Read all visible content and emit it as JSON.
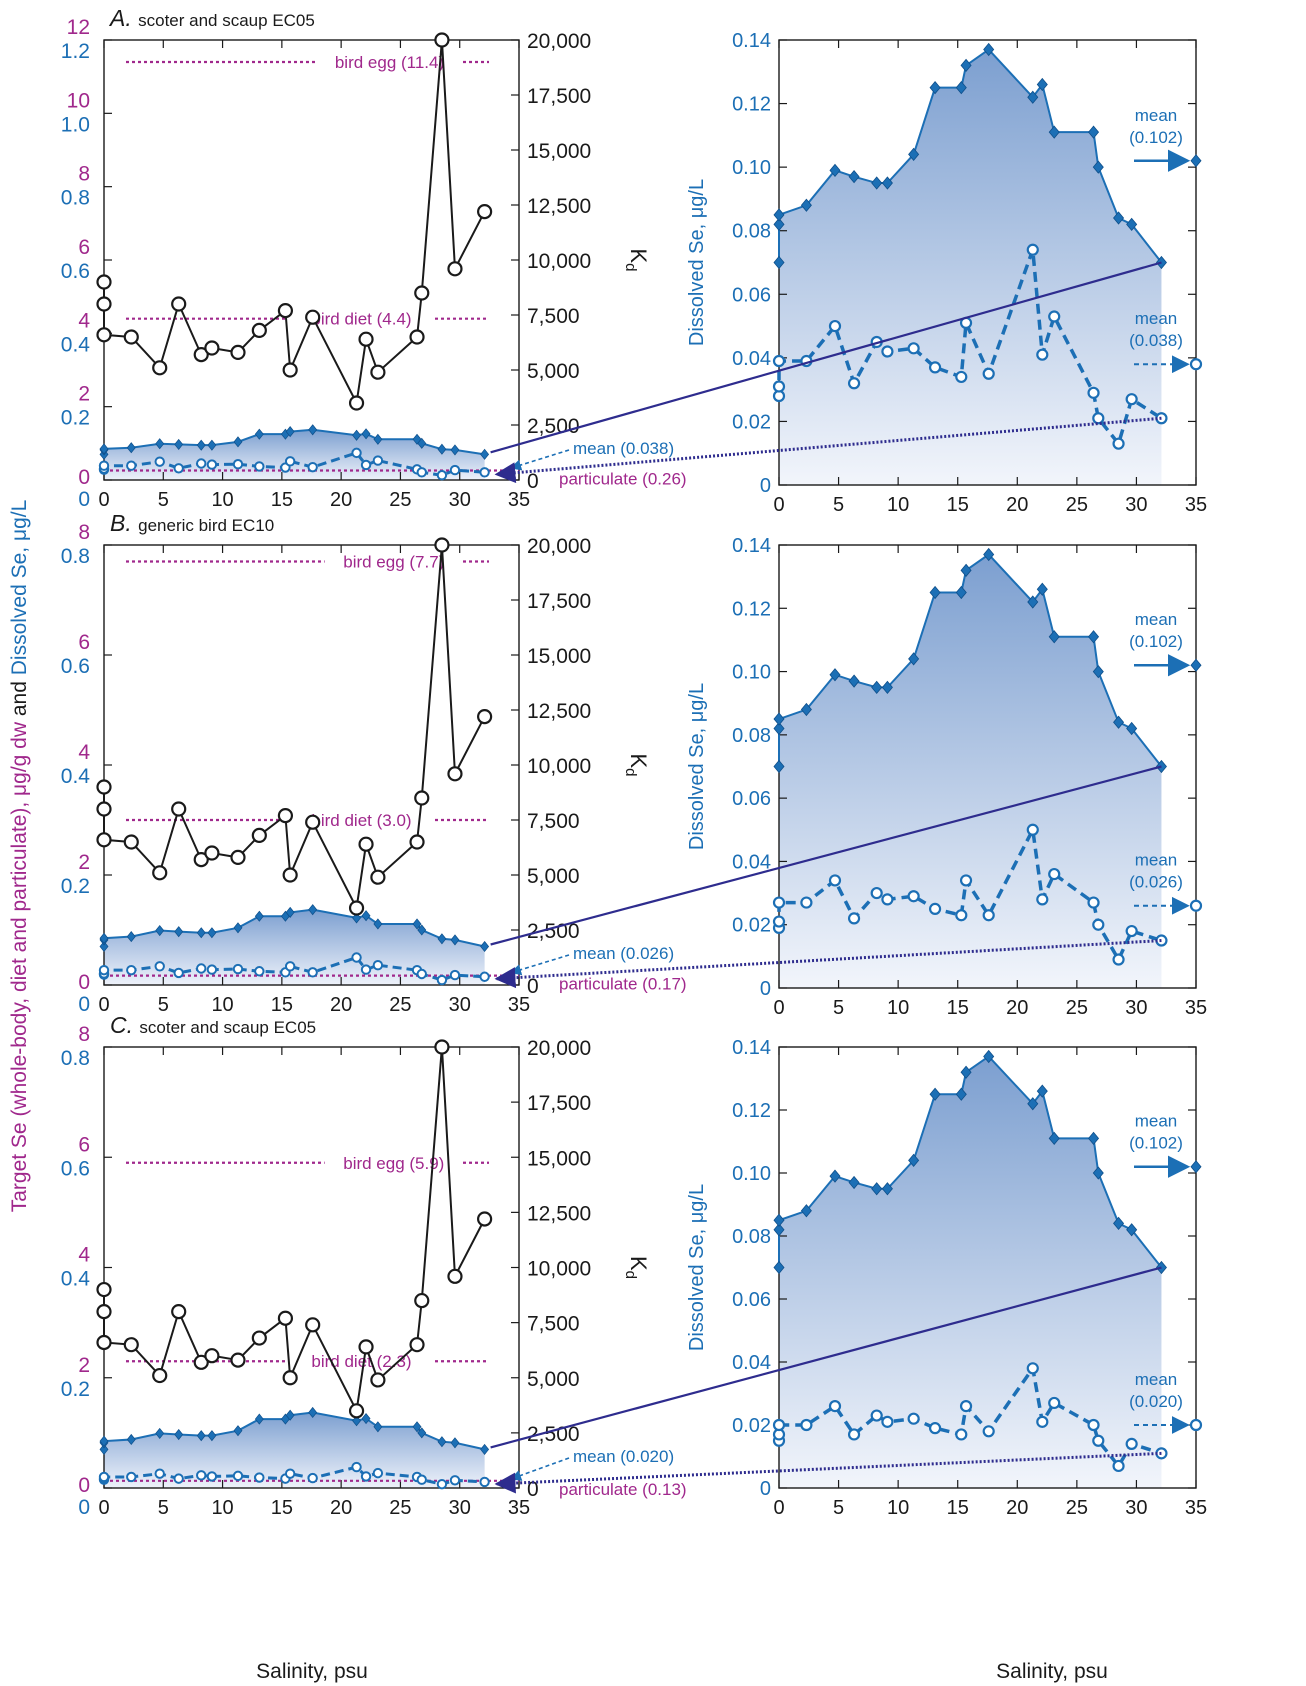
{
  "colors": {
    "magenta": "#A0288C",
    "blue": "#1C6FB5",
    "navy": "#2E2C8E",
    "fill_top": "#7C9FD0",
    "fill_bottom": "#F2F5FB",
    "black": "#1A1A1A"
  },
  "figure": {
    "left_axis_title_part1": "Target Se (whole-body, diet and particulate), μg/g dw",
    "left_axis_title_and": " and ",
    "left_axis_title_part2": "Dissolved Se, μg/L",
    "right_axis_title": "Dissolved Se, μg/L",
    "kd_label": "K",
    "kd_subscript": "d",
    "xlabel": "Salinity, psu"
  },
  "chart_data": [
    {
      "type": "line",
      "panel_letter": "A.",
      "panel_title": "scoter and scaup EC05",
      "xlabel": "Salinity, psu",
      "xlim": [
        0,
        35
      ],
      "x_ticks": [
        0,
        5,
        10,
        15,
        20,
        25,
        30,
        35
      ],
      "x_tick_labels": [
        "0",
        "5",
        "10",
        "15",
        "20",
        "25",
        "30",
        "35"
      ],
      "target_axis": {
        "color": "magenta",
        "ylim": [
          0,
          12
        ],
        "ticks": [
          0,
          2,
          4,
          6,
          8,
          10,
          12
        ],
        "tick_labels": [
          "0",
          "2",
          "4",
          "6",
          "8",
          "10",
          "12"
        ]
      },
      "dissolved_axis": {
        "color": "blue",
        "ylim": [
          0,
          1.2
        ],
        "ticks": [
          0,
          0.2,
          0.4,
          0.6,
          0.8,
          1.0,
          1.2
        ],
        "tick_labels": [
          "0",
          "0.2",
          "0.4",
          "0.6",
          "0.8",
          "1.0",
          "1.2"
        ]
      },
      "kd_axis": {
        "ylim": [
          0,
          20000
        ],
        "ticks": [
          0,
          2500,
          5000,
          7500,
          10000,
          12500,
          15000,
          17500,
          20000
        ],
        "tick_labels": [
          "0",
          "2,500",
          "5,000",
          "7,500",
          "10,000",
          "12,500",
          "15,000",
          "17,500",
          "20,000"
        ]
      },
      "thresholds": [
        {
          "label": "bird egg (11.4)",
          "value": 11.4,
          "units": "target"
        },
        {
          "label": "bird diet (4.4)",
          "value": 4.4,
          "units": "target"
        },
        {
          "label": "particulate (0.26)",
          "value": 0.26,
          "units": "target"
        }
      ],
      "mean_labels": {
        "left_mean": "mean (0.038)"
      },
      "kd_series": {
        "name": "Kd",
        "x": [
          0,
          0,
          0,
          2.3,
          4.7,
          6.3,
          8.2,
          9.1,
          11.3,
          13.1,
          15.3,
          15.7,
          17.6,
          21.3,
          22.1,
          23.1,
          26.4,
          26.8,
          28.5,
          29.6,
          32.1
        ],
        "y": [
          9000,
          8000,
          6600,
          6500,
          5100,
          8000,
          5700,
          6000,
          5800,
          6800,
          7700,
          5000,
          7400,
          3500,
          6400,
          4900,
          6500,
          8500,
          20000,
          9600,
          12200
        ]
      }
    },
    {
      "type": "line",
      "panel_letter": "B.",
      "panel_title": "generic bird EC10",
      "xlabel": "Salinity, psu",
      "xlim": [
        0,
        35
      ],
      "x_ticks": [
        0,
        5,
        10,
        15,
        20,
        25,
        30,
        35
      ],
      "x_tick_labels": [
        "0",
        "5",
        "10",
        "15",
        "20",
        "25",
        "30",
        "35"
      ],
      "target_axis": {
        "color": "magenta",
        "ylim": [
          0,
          8
        ],
        "ticks": [
          0,
          2,
          4,
          6,
          8
        ],
        "tick_labels": [
          "0",
          "2",
          "4",
          "6",
          "8"
        ]
      },
      "dissolved_axis": {
        "color": "blue",
        "ylim": [
          0,
          0.8
        ],
        "ticks": [
          0,
          0.2,
          0.4,
          0.6,
          0.8
        ],
        "tick_labels": [
          "0",
          "0.2",
          "0.4",
          "0.6",
          "0.8"
        ]
      },
      "kd_axis": {
        "ylim": [
          0,
          20000
        ],
        "ticks": [
          0,
          2500,
          5000,
          7500,
          10000,
          12500,
          15000,
          17500,
          20000
        ],
        "tick_labels": [
          "0",
          "2,500",
          "5,000",
          "7,500",
          "10,000",
          "12,500",
          "15,000",
          "17,500",
          "20,000"
        ]
      },
      "thresholds": [
        {
          "label": "bird egg (7.7)",
          "value": 7.7,
          "units": "target"
        },
        {
          "label": "bird diet (3.0)",
          "value": 3.0,
          "units": "target"
        },
        {
          "label": "particulate (0.17)",
          "value": 0.17,
          "units": "target"
        }
      ],
      "mean_labels": {
        "left_mean": "mean (0.026)"
      },
      "kd_series": {
        "name": "Kd",
        "x": [
          0,
          0,
          0,
          2.3,
          4.7,
          6.3,
          8.2,
          9.1,
          11.3,
          13.1,
          15.3,
          15.7,
          17.6,
          21.3,
          22.1,
          23.1,
          26.4,
          26.8,
          28.5,
          29.6,
          32.1
        ],
        "y": [
          9000,
          8000,
          6600,
          6500,
          5100,
          8000,
          5700,
          6000,
          5800,
          6800,
          7700,
          5000,
          7400,
          3500,
          6400,
          4900,
          6500,
          8500,
          20000,
          9600,
          12200
        ]
      }
    },
    {
      "type": "line",
      "panel_letter": "C.",
      "panel_title": "scoter and scaup EC05",
      "xlabel": "Salinity, psu",
      "xlim": [
        0,
        35
      ],
      "x_ticks": [
        0,
        5,
        10,
        15,
        20,
        25,
        30,
        35
      ],
      "x_tick_labels": [
        "0",
        "5",
        "10",
        "15",
        "20",
        "25",
        "30",
        "35"
      ],
      "target_axis": {
        "color": "magenta",
        "ylim": [
          0,
          8
        ],
        "ticks": [
          0,
          2,
          4,
          6,
          8
        ],
        "tick_labels": [
          "0",
          "2",
          "4",
          "6",
          "8"
        ]
      },
      "dissolved_axis": {
        "color": "blue",
        "ylim": [
          0,
          0.8
        ],
        "ticks": [
          0,
          0.2,
          0.4,
          0.6,
          0.8
        ],
        "tick_labels": [
          "0",
          "0.2",
          "0.4",
          "0.6",
          "0.8"
        ]
      },
      "kd_axis": {
        "ylim": [
          0,
          20000
        ],
        "ticks": [
          0,
          2500,
          5000,
          7500,
          10000,
          12500,
          15000,
          17500,
          20000
        ],
        "tick_labels": [
          "0",
          "2,500",
          "5,000",
          "7,500",
          "10,000",
          "12,500",
          "15,000",
          "17,500",
          "20,000"
        ]
      },
      "thresholds": [
        {
          "label": "bird egg (5.9)",
          "value": 5.9,
          "units": "target"
        },
        {
          "label": "bird diet (2.3)",
          "value": 2.3,
          "units": "target"
        },
        {
          "label": "particulate (0.13)",
          "value": 0.13,
          "units": "target"
        }
      ],
      "mean_labels": {
        "left_mean": "mean (0.020)"
      },
      "kd_series": {
        "name": "Kd",
        "x": [
          0,
          0,
          0,
          2.3,
          4.7,
          6.3,
          8.2,
          9.1,
          11.3,
          13.1,
          15.3,
          15.7,
          17.6,
          21.3,
          22.1,
          23.1,
          26.4,
          26.8,
          28.5,
          29.6,
          32.1
        ],
        "y": [
          9000,
          8000,
          6600,
          6500,
          5100,
          8000,
          5700,
          6000,
          5800,
          6800,
          7700,
          5000,
          7400,
          3500,
          6400,
          4900,
          6500,
          8500,
          20000,
          9600,
          12200
        ]
      }
    },
    {
      "type": "area",
      "panel": "A-right",
      "ylabel": "Dissolved Se, μg/L",
      "xlabel": "Salinity, psu",
      "xlim": [
        0,
        35
      ],
      "ylim": [
        0,
        0.14
      ],
      "x_ticks": [
        0,
        5,
        10,
        15,
        20,
        25,
        30,
        35
      ],
      "x_tick_labels": [
        "0",
        "5",
        "10",
        "15",
        "20",
        "25",
        "30",
        "35"
      ],
      "y_ticks": [
        0,
        0.02,
        0.04,
        0.06,
        0.08,
        0.1,
        0.12,
        0.14
      ],
      "y_tick_labels": [
        "0",
        "0.02",
        "0.04",
        "0.06",
        "0.08",
        "0.10",
        "0.12",
        "0.14"
      ],
      "total_series": {
        "x": [
          0,
          0,
          0,
          2.3,
          4.7,
          6.3,
          8.2,
          9.1,
          11.3,
          13.1,
          15.3,
          15.7,
          17.6,
          21.3,
          22.1,
          23.1,
          26.4,
          26.8,
          28.5,
          29.6,
          32.1
        ],
        "y": [
          0.07,
          0.082,
          0.085,
          0.088,
          0.099,
          0.097,
          0.095,
          0.095,
          0.104,
          0.125,
          0.125,
          0.132,
          0.137,
          0.122,
          0.126,
          0.111,
          0.111,
          0.1,
          0.084,
          0.082,
          0.07
        ]
      },
      "scaled_series": {
        "x": [
          0,
          0,
          0,
          2.3,
          4.7,
          6.3,
          8.2,
          9.1,
          11.3,
          13.1,
          15.3,
          15.7,
          17.6,
          21.3,
          22.1,
          23.1,
          26.4,
          26.8,
          28.5,
          29.6,
          32.1
        ],
        "y": [
          0.028,
          0.031,
          0.039,
          0.039,
          0.05,
          0.032,
          0.045,
          0.042,
          0.043,
          0.037,
          0.034,
          0.051,
          0.035,
          0.074,
          0.041,
          0.053,
          0.029,
          0.021,
          0.013,
          0.027,
          0.021
        ]
      },
      "means": [
        {
          "label_line1": "mean",
          "label_line2": "(0.102)",
          "value": 0.102,
          "style": "solid"
        },
        {
          "label_line1": "mean",
          "label_line2": "(0.038)",
          "value": 0.038,
          "style": "dashed"
        }
      ]
    },
    {
      "type": "area",
      "panel": "B-right",
      "ylabel": "Dissolved Se, μg/L",
      "xlabel": "Salinity, psu",
      "xlim": [
        0,
        35
      ],
      "ylim": [
        0,
        0.14
      ],
      "x_ticks": [
        0,
        5,
        10,
        15,
        20,
        25,
        30,
        35
      ],
      "x_tick_labels": [
        "0",
        "5",
        "10",
        "15",
        "20",
        "25",
        "30",
        "35"
      ],
      "y_ticks": [
        0,
        0.02,
        0.04,
        0.06,
        0.08,
        0.1,
        0.12,
        0.14
      ],
      "y_tick_labels": [
        "0",
        "0.02",
        "0.04",
        "0.06",
        "0.08",
        "0.10",
        "0.12",
        "0.14"
      ],
      "total_series": {
        "x": [
          0,
          0,
          0,
          2.3,
          4.7,
          6.3,
          8.2,
          9.1,
          11.3,
          13.1,
          15.3,
          15.7,
          17.6,
          21.3,
          22.1,
          23.1,
          26.4,
          26.8,
          28.5,
          29.6,
          32.1
        ],
        "y": [
          0.07,
          0.082,
          0.085,
          0.088,
          0.099,
          0.097,
          0.095,
          0.095,
          0.104,
          0.125,
          0.125,
          0.132,
          0.137,
          0.122,
          0.126,
          0.111,
          0.111,
          0.1,
          0.084,
          0.082,
          0.07
        ]
      },
      "scaled_series": {
        "x": [
          0,
          0,
          0,
          2.3,
          4.7,
          6.3,
          8.2,
          9.1,
          11.3,
          13.1,
          15.3,
          15.7,
          17.6,
          21.3,
          22.1,
          23.1,
          26.4,
          26.8,
          28.5,
          29.6,
          32.1
        ],
        "y": [
          0.019,
          0.021,
          0.027,
          0.027,
          0.034,
          0.022,
          0.03,
          0.028,
          0.029,
          0.025,
          0.023,
          0.034,
          0.023,
          0.05,
          0.028,
          0.036,
          0.027,
          0.02,
          0.009,
          0.018,
          0.015
        ]
      },
      "means": [
        {
          "label_line1": "mean",
          "label_line2": "(0.102)",
          "value": 0.102,
          "style": "solid"
        },
        {
          "label_line1": "mean",
          "label_line2": "(0.026)",
          "value": 0.026,
          "style": "dashed"
        }
      ]
    },
    {
      "type": "area",
      "panel": "C-right",
      "ylabel": "Dissolved Se, μg/L",
      "xlabel": "Salinity, psu",
      "xlim": [
        0,
        35
      ],
      "ylim": [
        0,
        0.14
      ],
      "x_ticks": [
        0,
        5,
        10,
        15,
        20,
        25,
        30,
        35
      ],
      "x_tick_labels": [
        "0",
        "5",
        "10",
        "15",
        "20",
        "25",
        "30",
        "35"
      ],
      "y_ticks": [
        0,
        0.02,
        0.04,
        0.06,
        0.08,
        0.1,
        0.12,
        0.14
      ],
      "y_tick_labels": [
        "0",
        "0.02",
        "0.04",
        "0.06",
        "0.08",
        "0.10",
        "0.12",
        "0.14"
      ],
      "total_series": {
        "x": [
          0,
          0,
          0,
          2.3,
          4.7,
          6.3,
          8.2,
          9.1,
          11.3,
          13.1,
          15.3,
          15.7,
          17.6,
          21.3,
          22.1,
          23.1,
          26.4,
          26.8,
          28.5,
          29.6,
          32.1
        ],
        "y": [
          0.07,
          0.082,
          0.085,
          0.088,
          0.099,
          0.097,
          0.095,
          0.095,
          0.104,
          0.125,
          0.125,
          0.132,
          0.137,
          0.122,
          0.126,
          0.111,
          0.111,
          0.1,
          0.084,
          0.082,
          0.07
        ]
      },
      "scaled_series": {
        "x": [
          0,
          0,
          0,
          2.3,
          4.7,
          6.3,
          8.2,
          9.1,
          11.3,
          13.1,
          15.3,
          15.7,
          17.6,
          21.3,
          22.1,
          23.1,
          26.4,
          26.8,
          28.5,
          29.6,
          32.1
        ],
        "y": [
          0.015,
          0.017,
          0.02,
          0.02,
          0.026,
          0.017,
          0.023,
          0.021,
          0.022,
          0.019,
          0.017,
          0.026,
          0.018,
          0.038,
          0.021,
          0.027,
          0.02,
          0.015,
          0.007,
          0.014,
          0.011
        ]
      },
      "means": [
        {
          "label_line1": "mean",
          "label_line2": "(0.102)",
          "value": 0.102,
          "style": "solid"
        },
        {
          "label_line1": "mean",
          "label_line2": "(0.020)",
          "value": 0.02,
          "style": "dashed"
        }
      ]
    }
  ]
}
